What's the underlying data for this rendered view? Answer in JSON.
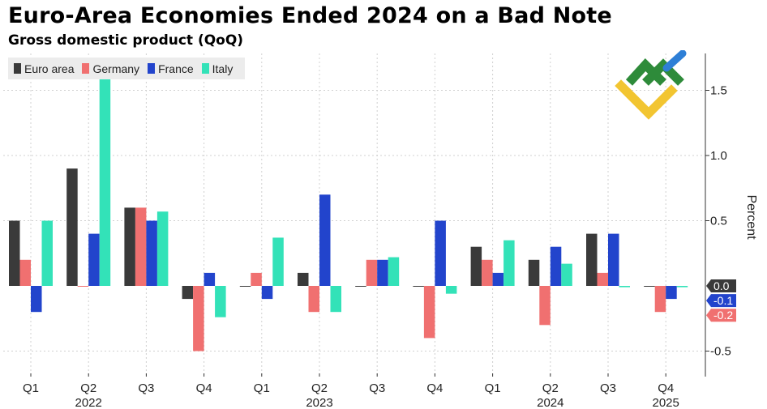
{
  "title": "Euro-Area Economies Ended 2024 on a Bad Note",
  "subtitle": "Gross domestic product (QoQ)",
  "colors": {
    "euro_area": "#3a3a3a",
    "germany": "#f07070",
    "france": "#2244cc",
    "italy": "#33e2b8",
    "grid": "#d0d0d0",
    "axis": "#333333"
  },
  "legend": [
    {
      "name": "Euro area",
      "color": "#3a3a3a"
    },
    {
      "name": "Germany",
      "color": "#f07070"
    },
    {
      "name": "France",
      "color": "#2244cc"
    },
    {
      "name": "Italy",
      "color": "#33e2b8"
    }
  ],
  "chart_data": {
    "type": "bar",
    "title": "Euro-Area Economies Ended 2024 on a Bad Note",
    "subtitle": "Gross domestic product (QoQ)",
    "xlabel": "",
    "ylabel": "Percent",
    "ylim": [
      -0.7,
      1.77
    ],
    "y_ticks": [
      1.5,
      1.0,
      0.5,
      -0.5
    ],
    "y_tick_labels": [
      "1.5",
      "1.0",
      "0.5",
      "-0.5"
    ],
    "categories": [
      "Q1",
      "Q2",
      "Q3",
      "Q4",
      "Q1",
      "Q2",
      "Q3",
      "Q4",
      "Q1",
      "Q2",
      "Q3",
      "Q4"
    ],
    "year_labels": [
      {
        "label": "2022",
        "category_index": 1
      },
      {
        "label": "2023",
        "category_index": 5
      },
      {
        "label": "2024",
        "category_index": 9
      },
      {
        "label": "2025",
        "category_index": 11
      }
    ],
    "series": [
      {
        "name": "Euro area",
        "values": [
          0.5,
          0.9,
          0.6,
          -0.1,
          0.0,
          0.1,
          0.0,
          0.0,
          0.3,
          0.2,
          0.4,
          0.0
        ]
      },
      {
        "name": "Germany",
        "values": [
          0.2,
          0.0,
          0.6,
          -0.5,
          0.1,
          -0.2,
          0.2,
          -0.4,
          0.2,
          -0.3,
          0.1,
          -0.2
        ]
      },
      {
        "name": "France",
        "values": [
          -0.2,
          0.4,
          0.5,
          0.1,
          -0.1,
          0.7,
          0.2,
          0.5,
          0.1,
          0.3,
          0.4,
          -0.1
        ]
      },
      {
        "name": "Italy",
        "values": [
          0.5,
          1.6,
          0.57,
          -0.24,
          0.37,
          -0.2,
          0.22,
          -0.06,
          0.35,
          0.17,
          -0.01,
          -0.01
        ]
      }
    ],
    "end_labels": [
      {
        "series": "Euro area",
        "value": 0.0,
        "label": "0.0",
        "color": "#3a3a3a"
      },
      {
        "series": "France",
        "value": -0.1,
        "label": "-0.1",
        "color": "#2244cc"
      },
      {
        "series": "Germany",
        "value": -0.2,
        "label": "-0.2",
        "color": "#f07070"
      }
    ],
    "grid": true,
    "legend_position": "top-left"
  }
}
